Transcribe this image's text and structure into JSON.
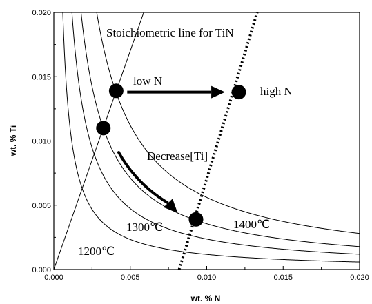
{
  "chart_data": {
    "type": "line",
    "title": "",
    "xlabel": "wt. % N",
    "ylabel": "wt. % Ti",
    "xlim": [
      0,
      0.02
    ],
    "ylim": [
      0,
      0.02
    ],
    "x_ticks": [
      "0.000",
      "0.005",
      "0.010",
      "0.015",
      "0.020"
    ],
    "y_ticks": [
      "0.000",
      "0.005",
      "0.010",
      "0.015",
      "0.020"
    ],
    "grid": false,
    "solubility_curves": [
      {
        "label": "1200℃",
        "product": 1.17e-05
      },
      {
        "label": "1300℃",
        "product": 2.37e-05
      },
      {
        "label": "1400℃",
        "product": 3.56e-05
      },
      {
        "label": "",
        "product": 5.61e-05
      }
    ],
    "stoichiometric_lines": [
      {
        "label": "Stoichiometric line for TiN",
        "points": [
          [
            0,
            0
          ],
          [
            0.00588,
            0.02
          ]
        ],
        "style": "solid"
      },
      {
        "label": "",
        "points": [
          [
            0.0082,
            0
          ],
          [
            0.0133,
            0.02
          ]
        ],
        "style": "dotted"
      }
    ],
    "points": [
      {
        "x": 0.00408,
        "y": 0.0139
      },
      {
        "x": 0.0121,
        "y": 0.0138
      },
      {
        "x": 0.00324,
        "y": 0.011
      },
      {
        "x": 0.0093,
        "y": 0.0039
      }
    ],
    "arrows": [
      {
        "label": "low N → high N",
        "from": [
          0.0048,
          0.0138
        ],
        "to": [
          0.0112,
          0.0138
        ]
      },
      {
        "label": "Decrease [Ti]",
        "from": [
          0.0042,
          0.0092
        ],
        "to": [
          0.0081,
          0.0044
        ]
      }
    ],
    "annotations": {
      "stoich": "Stoichiometric line for TiN",
      "low_n": "low N",
      "high_n": "high N",
      "decrease": "Decrease[Ti]",
      "t1200": "1200℃",
      "t1300": "1300℃",
      "t1400": "1400℃"
    }
  }
}
